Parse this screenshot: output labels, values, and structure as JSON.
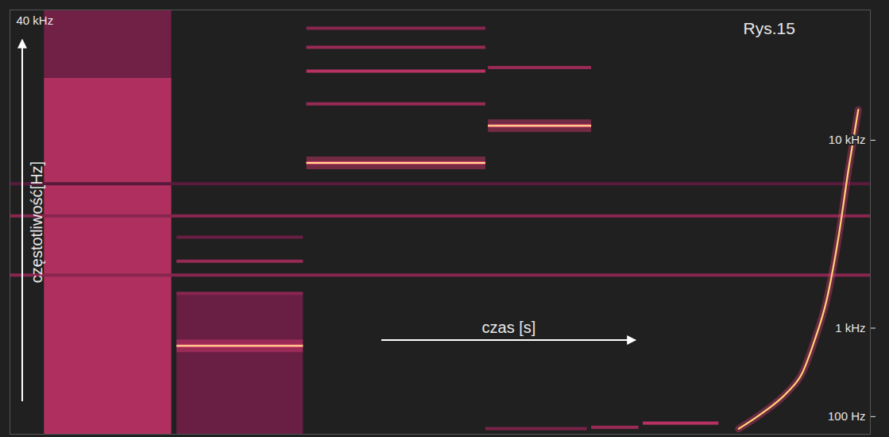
{
  "chart_data": {
    "type": "spectrogram",
    "title": "Rys.15",
    "x_label": "czas [s]",
    "y_label": "częstotliwość[Hz]",
    "xlim": [
      0,
      10
    ],
    "ylim": [
      0,
      40000
    ],
    "yticks": [
      {
        "value": 100,
        "label": "100 Hz"
      },
      {
        "value": 1000,
        "label": "1 kHz"
      },
      {
        "value": 10000,
        "label": "10 kHz"
      },
      {
        "value": 40000,
        "label": "40 kHz"
      }
    ],
    "log": "y",
    "tick_labels": "y",
    "bands": [
      {
        "t_start": 0.4,
        "t_end": 1.88,
        "f_low": 0,
        "f_high": 19500,
        "level": 0.75
      },
      {
        "t_start": 0.4,
        "t_end": 1.88,
        "f_low": 19500,
        "f_high": 40000,
        "level": 0.35
      },
      {
        "t_start": 1.94,
        "t_end": 3.41,
        "f_low": 0,
        "f_high": 1650,
        "level": 0.3
      }
    ],
    "tones": [
      {
        "t_start": 0,
        "t_end": 10,
        "f": 2100,
        "level": 0.5
      },
      {
        "t_start": 0,
        "t_end": 10,
        "f": 4300,
        "level": 0.5
      },
      {
        "t_start": 0,
        "t_end": 10,
        "f": 6200,
        "level": 0.2
      },
      {
        "t_start": 1.94,
        "t_end": 3.41,
        "f": 750,
        "level": 1
      },
      {
        "t_start": 1.94,
        "t_end": 3.41,
        "f": 1650,
        "level": 0.5
      },
      {
        "t_start": 1.94,
        "t_end": 3.41,
        "f": 2500,
        "level": 0.6
      },
      {
        "t_start": 1.94,
        "t_end": 3.41,
        "f": 3350,
        "level": 0.3
      },
      {
        "t_start": 3.45,
        "t_end": 5.53,
        "f": 7800,
        "level": 1
      },
      {
        "t_start": 3.45,
        "t_end": 5.53,
        "f": 14800,
        "level": 0.6
      },
      {
        "t_start": 3.45,
        "t_end": 5.53,
        "f": 21000,
        "level": 0.8
      },
      {
        "t_start": 3.45,
        "t_end": 5.53,
        "f": 27000,
        "level": 0.6
      },
      {
        "t_start": 3.45,
        "t_end": 5.53,
        "f": 33000,
        "level": 0.5
      },
      {
        "t_start": 5.56,
        "t_end": 6.76,
        "f": 11700,
        "level": 1
      },
      {
        "t_start": 5.56,
        "t_end": 6.76,
        "f": 21800,
        "level": 0.6
      },
      {
        "t_start": 5.53,
        "t_end": 6.71,
        "f": 30,
        "level": 0.4
      },
      {
        "t_start": 6.76,
        "t_end": 7.31,
        "f": 37,
        "level": 0.6
      },
      {
        "t_start": 7.36,
        "t_end": 8.24,
        "f": 61,
        "level": 0.8
      }
    ],
    "sweep": {
      "t": [
        8.47,
        8.75,
        9.03,
        9.21,
        9.35,
        9.49,
        9.63,
        9.75,
        9.86
      ],
      "f": [
        29,
        125,
        268,
        445,
        815,
        1490,
        3350,
        7440,
        13900
      ]
    }
  }
}
